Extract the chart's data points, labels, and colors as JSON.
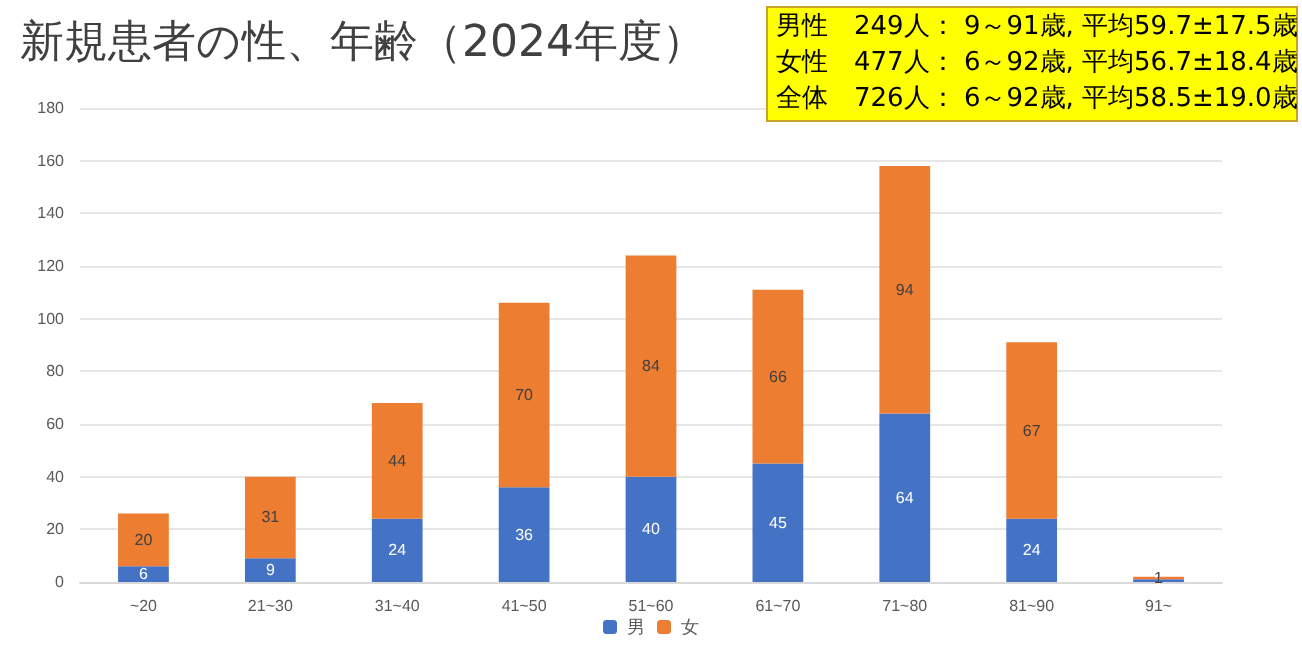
{
  "chart_data": {
    "type": "bar",
    "title": "新規患者の性、年齢（2024年度）",
    "annotations": [
      "男性　249人： 9～91歳, 平均59.7±17.5歳",
      "女性　477人： 6～92歳, 平均56.7±18.4歳",
      "全体　726人： 6～92歳, 平均58.5±19.0歳"
    ],
    "categories": [
      "~20",
      "21~30",
      "31~40",
      "41~50",
      "51~60",
      "61~70",
      "71~80",
      "81~90",
      "91~"
    ],
    "stacked": true,
    "series": [
      {
        "name": "男",
        "color": "#4472c4",
        "values": [
          6,
          9,
          24,
          36,
          40,
          45,
          64,
          24,
          1
        ]
      },
      {
        "name": "女",
        "color": "#ed7d31",
        "values": [
          20,
          31,
          44,
          70,
          84,
          66,
          94,
          67,
          1
        ]
      }
    ],
    "ylim": [
      0,
      180
    ],
    "yticks": [
      0,
      20,
      40,
      60,
      80,
      100,
      120,
      140,
      160,
      180
    ],
    "grid": "y",
    "legend": "bottom",
    "data_labels": true
  }
}
